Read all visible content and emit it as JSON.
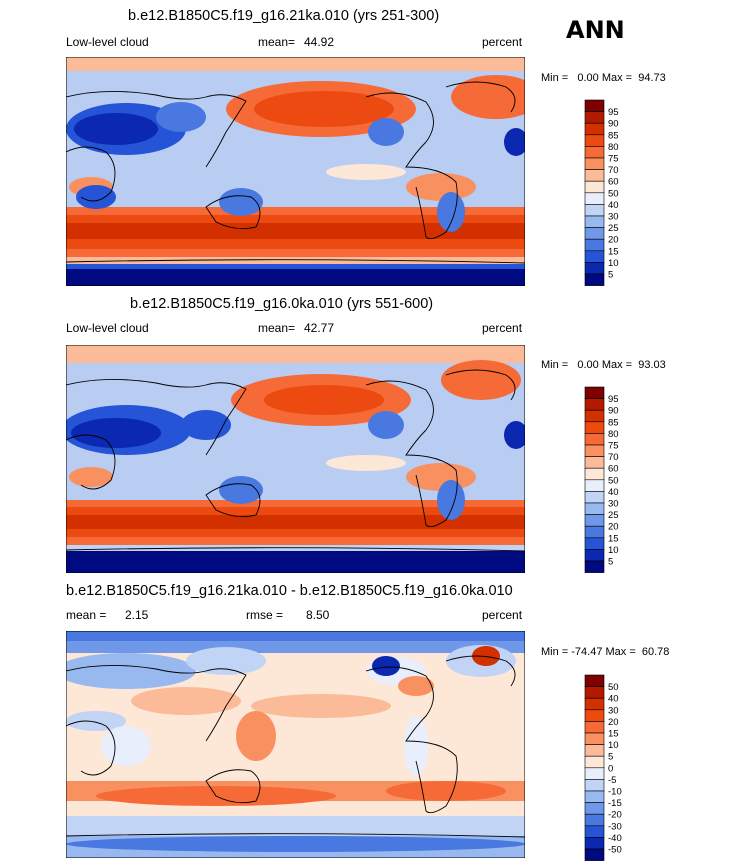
{
  "season": "ANN",
  "chart_data": [
    {
      "type": "heatmap",
      "title": "b.e12.B1850C5.f19_g16.21ka.010 (yrs 251-300)",
      "variable": "Low-level cloud",
      "mean_label": "mean=",
      "mean_value": "44.92",
      "units": "percent",
      "range_text": "Min =   0.00 Max =  94.73",
      "min": 0.0,
      "max": 94.73,
      "colorbar": {
        "levels": [
          "95",
          "90",
          "85",
          "80",
          "75",
          "70",
          "60",
          "50",
          "40",
          "30",
          "25",
          "20",
          "15",
          "10",
          "5"
        ],
        "colors": [
          "#7f0000",
          "#b21a00",
          "#d33000",
          "#ec4a10",
          "#f56a36",
          "#f9905f",
          "#fbbb98",
          "#fde7d6",
          "#e8eefb",
          "#c1d4f6",
          "#98b8f0",
          "#6f98e8",
          "#4878e0",
          "#2554d6",
          "#0a28b0",
          "#000a80"
        ]
      }
    },
    {
      "type": "heatmap",
      "title": "b.e12.B1850C5.f19_g16.0ka.010 (yrs 551-600)",
      "variable": "Low-level cloud",
      "mean_label": "mean=",
      "mean_value": "42.77",
      "units": "percent",
      "range_text": "Min =   0.00 Max =  93.03",
      "min": 0.0,
      "max": 93.03,
      "colorbar": {
        "levels": [
          "95",
          "90",
          "85",
          "80",
          "75",
          "70",
          "60",
          "50",
          "40",
          "30",
          "25",
          "20",
          "15",
          "10",
          "5"
        ],
        "colors": [
          "#7f0000",
          "#b21a00",
          "#d33000",
          "#ec4a10",
          "#f56a36",
          "#f9905f",
          "#fbbb98",
          "#fde7d6",
          "#e8eefb",
          "#c1d4f6",
          "#98b8f0",
          "#6f98e8",
          "#4878e0",
          "#2554d6",
          "#0a28b0",
          "#000a80"
        ]
      }
    },
    {
      "type": "heatmap",
      "title": "b.e12.B1850C5.f19_g16.21ka.010 - b.e12.B1850C5.f19_g16.0ka.010",
      "mean_label": "mean =",
      "mean_value": "2.15",
      "rmse_label": "rmse =",
      "rmse_value": "8.50",
      "units": "percent",
      "range_text": "Min = -74.47 Max =  60.78",
      "min": -74.47,
      "max": 60.78,
      "colorbar": {
        "levels": [
          "50",
          "40",
          "30",
          "20",
          "15",
          "10",
          "5",
          "0",
          "-5",
          "-10",
          "-15",
          "-20",
          "-30",
          "-40",
          "-50"
        ],
        "colors": [
          "#7f0000",
          "#b21a00",
          "#d33000",
          "#ec4a10",
          "#f56a36",
          "#f9905f",
          "#fbbb98",
          "#fde7d6",
          "#e8eefb",
          "#c1d4f6",
          "#98b8f0",
          "#6f98e8",
          "#4878e0",
          "#2554d6",
          "#0a28b0",
          "#000a80"
        ]
      }
    }
  ]
}
